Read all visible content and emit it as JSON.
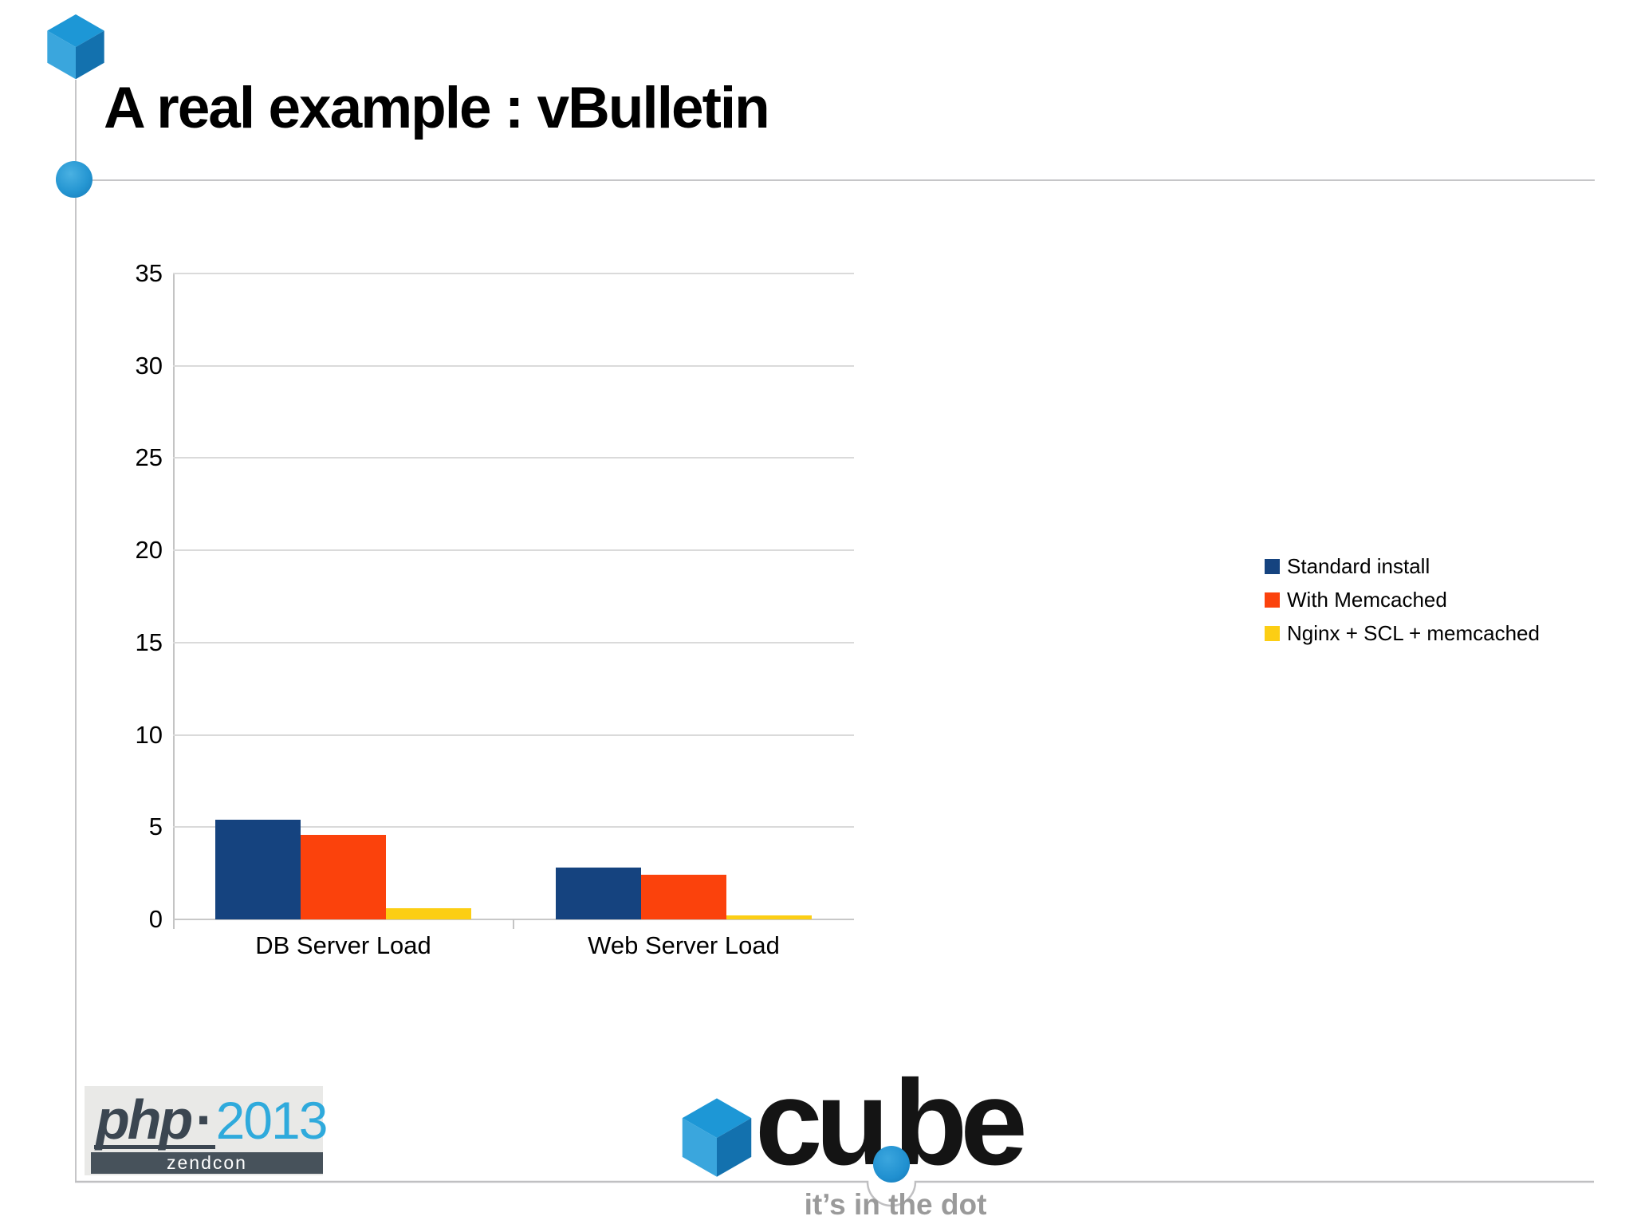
{
  "slide": {
    "title": "A real example : vBulletin"
  },
  "chart_data": {
    "type": "bar",
    "categories": [
      "DB Server Load",
      "Web Server Load"
    ],
    "series": [
      {
        "name": "Standard install",
        "color": "#15437F",
        "values": [
          5.4,
          2.8
        ]
      },
      {
        "name": "With Memcached",
        "color": "#FB420C",
        "values": [
          4.6,
          2.4
        ]
      },
      {
        "name": "Nginx + SCL + memcached",
        "color": "#FCCE14",
        "values": [
          0.6,
          0.2
        ]
      }
    ],
    "title": "",
    "xlabel": "",
    "ylabel": "",
    "ylim": [
      0,
      35
    ],
    "yticks": [
      0,
      5,
      10,
      15,
      20,
      25,
      30,
      35
    ],
    "grid": true,
    "legend_position": "right"
  },
  "footer": {
    "php_logo": {
      "word": "php",
      "dot": "·",
      "year": "2013",
      "sub": "zendcon"
    },
    "cube_logo": {
      "part1": "cu",
      "part2": "be",
      "tagline": "it’s in the dot"
    }
  },
  "decor": {
    "cube_top_color": "#1d97d6",
    "cube_left_color": "#3aa6dd",
    "cube_right_color": "#1371ae",
    "line_color": "#c6c6c8"
  }
}
